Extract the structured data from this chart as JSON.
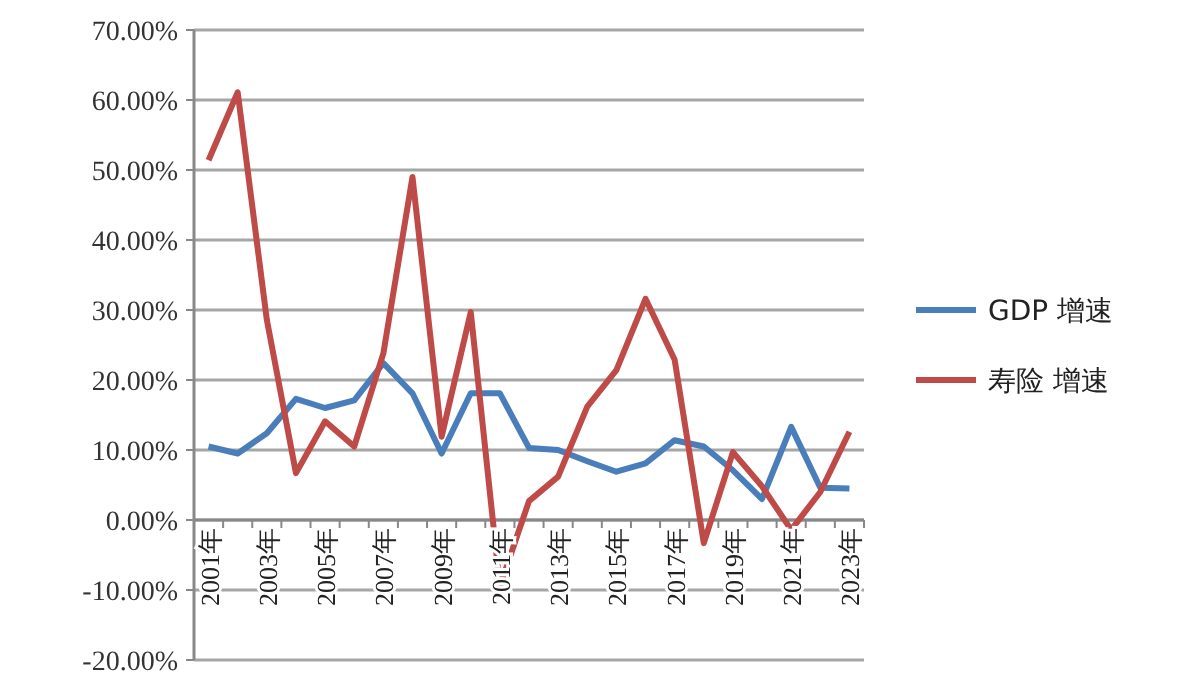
{
  "chart_data": {
    "type": "line",
    "categories": [
      "2001年",
      null,
      "2003年",
      null,
      "2005年",
      null,
      "2007年",
      null,
      "2009年",
      null,
      "2011年",
      null,
      "2013年",
      null,
      "2015年",
      null,
      "2017年",
      null,
      "2019年",
      null,
      "2021年",
      null,
      "2023年"
    ],
    "series": [
      {
        "name": "GDP 增速",
        "color": "#4a7ebb",
        "values": [
          10.5,
          9.5,
          12.4,
          17.3,
          16,
          17.1,
          22.4,
          18.1,
          9.5,
          18.1,
          18.1,
          10.3,
          10,
          8.4,
          6.9,
          8.1,
          11.4,
          10.5,
          7.1,
          3,
          13.3,
          4.6,
          4.5
        ]
      },
      {
        "name": "寿险 增速",
        "color": "#be4b48",
        "values": [
          51.4,
          61.1,
          28.6,
          6.7,
          14.1,
          10.5,
          23.8,
          49,
          11.9,
          29.7,
          -9.5,
          2.7,
          6.2,
          16.2,
          21.4,
          31.6,
          22.9,
          -3.3,
          9.7,
          4.8,
          -1.4,
          4,
          12.6
        ]
      }
    ],
    "ylim": [
      -20,
      70
    ],
    "yticks": [
      {
        "value": -20,
        "label": "-20.00%"
      },
      {
        "value": -10,
        "label": "-10.00%"
      },
      {
        "value": 0,
        "label": "0.00%"
      },
      {
        "value": 10,
        "label": "10.00%"
      },
      {
        "value": 20,
        "label": "20.00%"
      },
      {
        "value": 30,
        "label": "30.00%"
      },
      {
        "value": 40,
        "label": "40.00%"
      },
      {
        "value": 50,
        "label": "50.00%"
      },
      {
        "value": 60,
        "label": "60.00%"
      },
      {
        "value": 70,
        "label": "70.00%"
      }
    ],
    "grid": "y",
    "legend": "right",
    "marker": "none",
    "line_style": "solid"
  }
}
